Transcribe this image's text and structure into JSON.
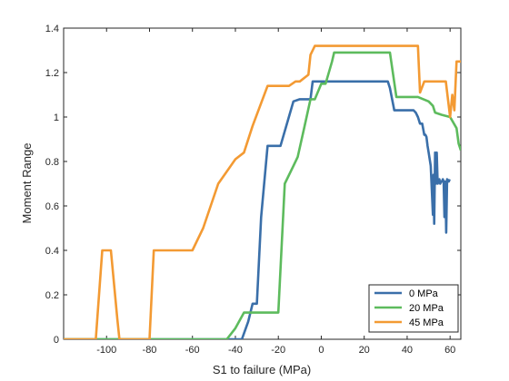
{
  "chart_data": {
    "type": "line",
    "xlabel": "S1 to failure (MPa)",
    "ylabel": "Moment Range",
    "xlim": [
      -120,
      65
    ],
    "ylim": [
      0,
      1.4
    ],
    "xticks": [
      -100,
      -80,
      -60,
      -40,
      -20,
      0,
      20,
      40,
      60
    ],
    "xtick_labels": [
      "-100",
      "-80",
      "-60",
      "-40",
      "-20",
      "0",
      "20",
      "40",
      "60"
    ],
    "yticks": [
      0,
      0.2,
      0.4,
      0.6,
      0.8,
      1.0,
      1.2,
      1.4
    ],
    "ytick_labels": [
      "0",
      "0.2",
      "0.4",
      "0.6",
      "0.8",
      "1",
      "1.2",
      "1.4"
    ],
    "grid": false,
    "legend_position": "bottom-right",
    "series": [
      {
        "name": "0 MPa",
        "color": "#3a6fa9",
        "x": [
          -120,
          -37,
          -34,
          -32,
          -30,
          -28,
          -25,
          -24,
          -19,
          -13,
          -10,
          -7,
          -5,
          -4,
          -1,
          0,
          31,
          32,
          33,
          34,
          35,
          43,
          44,
          45,
          46,
          47,
          48,
          48.5,
          49,
          49.5,
          50,
          51,
          52,
          52.3,
          52.6,
          53,
          53.4,
          53.8,
          54.2,
          54.6,
          55,
          55.4,
          55.8,
          56.2,
          56.6,
          57,
          57.4,
          57.8,
          58.2,
          58.6,
          59,
          59.4,
          59.8
        ],
        "y": [
          0,
          0,
          0.08,
          0.16,
          0.16,
          0.55,
          0.87,
          0.87,
          0.87,
          1.07,
          1.08,
          1.08,
          1.08,
          1.16,
          1.16,
          1.16,
          1.16,
          1.13,
          1.08,
          1.03,
          1.03,
          1.03,
          1.02,
          1.0,
          0.97,
          0.97,
          0.92,
          0.92,
          0.91,
          0.87,
          0.84,
          0.78,
          0.56,
          0.74,
          0.52,
          0.84,
          0.7,
          0.84,
          0.7,
          0.71,
          0.72,
          0.7,
          0.71,
          0.71,
          0.72,
          0.71,
          0.55,
          0.71,
          0.48,
          0.72,
          0.71,
          0.71,
          0.72
        ]
      },
      {
        "name": "20 MPa",
        "color": "#5dbb5d",
        "x": [
          -120,
          -44,
          -40,
          -36,
          -35,
          -30,
          -25,
          -20,
          -17,
          -13,
          -11,
          -8,
          -5,
          -3,
          0,
          2,
          5,
          6,
          32,
          35,
          45,
          50,
          52,
          53,
          56,
          60,
          63,
          64,
          65
        ],
        "y": [
          0,
          0,
          0.05,
          0.12,
          0.12,
          0.12,
          0.12,
          0.12,
          0.7,
          0.78,
          0.82,
          0.95,
          1.08,
          1.08,
          1.15,
          1.15,
          1.25,
          1.29,
          1.29,
          1.09,
          1.09,
          1.07,
          1.05,
          1.02,
          1.01,
          1.0,
          0.95,
          0.88,
          0.85
        ]
      },
      {
        "name": "45 MPa",
        "color": "#f39a33",
        "x": [
          -120,
          -105,
          -102,
          -99,
          -98,
          -95,
          -94,
          -80,
          -78,
          -60,
          -55,
          -48,
          -40,
          -36,
          -32,
          -25,
          -15,
          -12,
          -10,
          -6,
          -5,
          -3,
          6,
          45,
          46,
          48,
          58,
          60,
          61,
          62,
          63,
          64,
          65
        ],
        "y": [
          0,
          0,
          0.4,
          0.4,
          0.4,
          0.09,
          0,
          0,
          0.4,
          0.4,
          0.5,
          0.7,
          0.81,
          0.84,
          0.96,
          1.14,
          1.14,
          1.16,
          1.16,
          1.19,
          1.28,
          1.32,
          1.32,
          1.32,
          1.11,
          1.16,
          1.16,
          1.0,
          1.1,
          1.03,
          1.25,
          1.25,
          1.25
        ]
      }
    ]
  }
}
